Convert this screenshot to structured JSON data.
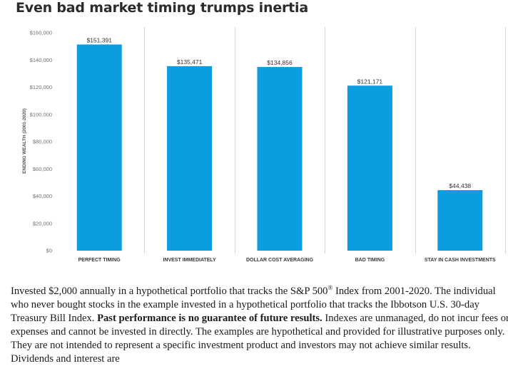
{
  "page": {
    "title": "Even bad market timing trumps inertia"
  },
  "chart_data": {
    "type": "bar",
    "title": "Even bad market timing trumps inertia",
    "ylabel": "ENDING WEALTH (2001-2020)",
    "xlabel": "",
    "categories": [
      "PERFECT TIMING",
      "INVEST IMMEDIATELY",
      "DOLLAR COST AVERAGING",
      "BAD TIMING",
      "STAY IN CASH INVESTMENTS"
    ],
    "values": [
      151391,
      135471,
      134856,
      121171,
      44438
    ],
    "data_labels": [
      "$151,391",
      "$135,471",
      "$134,856",
      "$121,171",
      "$44,438"
    ],
    "ylim": [
      0,
      160000
    ],
    "yticks": [
      0,
      20000,
      40000,
      60000,
      80000,
      100000,
      120000,
      140000,
      160000
    ],
    "ytick_labels": [
      "$0",
      "$20,000",
      "$40,000",
      "$60,000",
      "$80,000",
      "$100,000",
      "$120,000",
      "$140,000",
      "$160,000"
    ],
    "bar_color": "#0a9de0",
    "grid": false,
    "legend": "none"
  },
  "caption": {
    "part1": "Invested $2,000 annually in a hypothetical portfolio that tracks the S&P 500",
    "registered": "®",
    "part2": " Index from 2001-2020. The individual who never bought stocks in the example invested in a hypothetical portfolio that tracks the Ibbotson U.S. 30-day Treasury Bill Index. ",
    "bold": "Past performance is no guarantee of future results.",
    "part3": " Indexes are unmanaged, do not incur fees or expenses and cannot be invested in directly. The examples are hypothetical and provided for illustrative purposes only. They are not intended to represent a specific investment product and investors may not achieve similar results. Dividends and interest are"
  }
}
